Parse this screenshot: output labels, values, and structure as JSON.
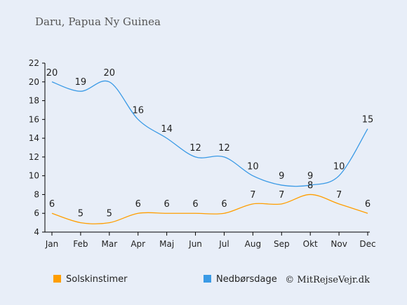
{
  "chart_data": {
    "type": "line",
    "subtitle": "Daru, Papua Ny Guinea",
    "categories": [
      "Jan",
      "Feb",
      "Mar",
      "Apr",
      "Maj",
      "Jun",
      "Jul",
      "Aug",
      "Sep",
      "Okt",
      "Nov",
      "Dec"
    ],
    "yticks": [
      "4",
      "6",
      "8",
      "10",
      "12",
      "14",
      "16",
      "18",
      "20",
      "22"
    ],
    "ylim": [
      4,
      22
    ],
    "grid": false,
    "legend_position": "bottom",
    "series": [
      {
        "name": "Solskinstimer",
        "color": "#ff9e00",
        "values": [
          6,
          5,
          5,
          6,
          6,
          6,
          6,
          7,
          7,
          8,
          7,
          6
        ],
        "labels": [
          "6",
          "5",
          "5",
          "6",
          "6",
          "6",
          "6",
          "7",
          "7",
          "8",
          "7",
          "6"
        ]
      },
      {
        "name": "Nedbørsdage",
        "color": "#3a9ae6",
        "values": [
          20,
          19,
          20,
          16,
          14,
          12,
          12,
          10,
          9,
          9,
          10,
          15
        ],
        "labels": [
          "20",
          "19",
          "20",
          "16",
          "14",
          "12",
          "12",
          "10",
          "9",
          "9",
          "10",
          "15"
        ]
      }
    ]
  },
  "credit": "© MitRejseVejr.dk"
}
